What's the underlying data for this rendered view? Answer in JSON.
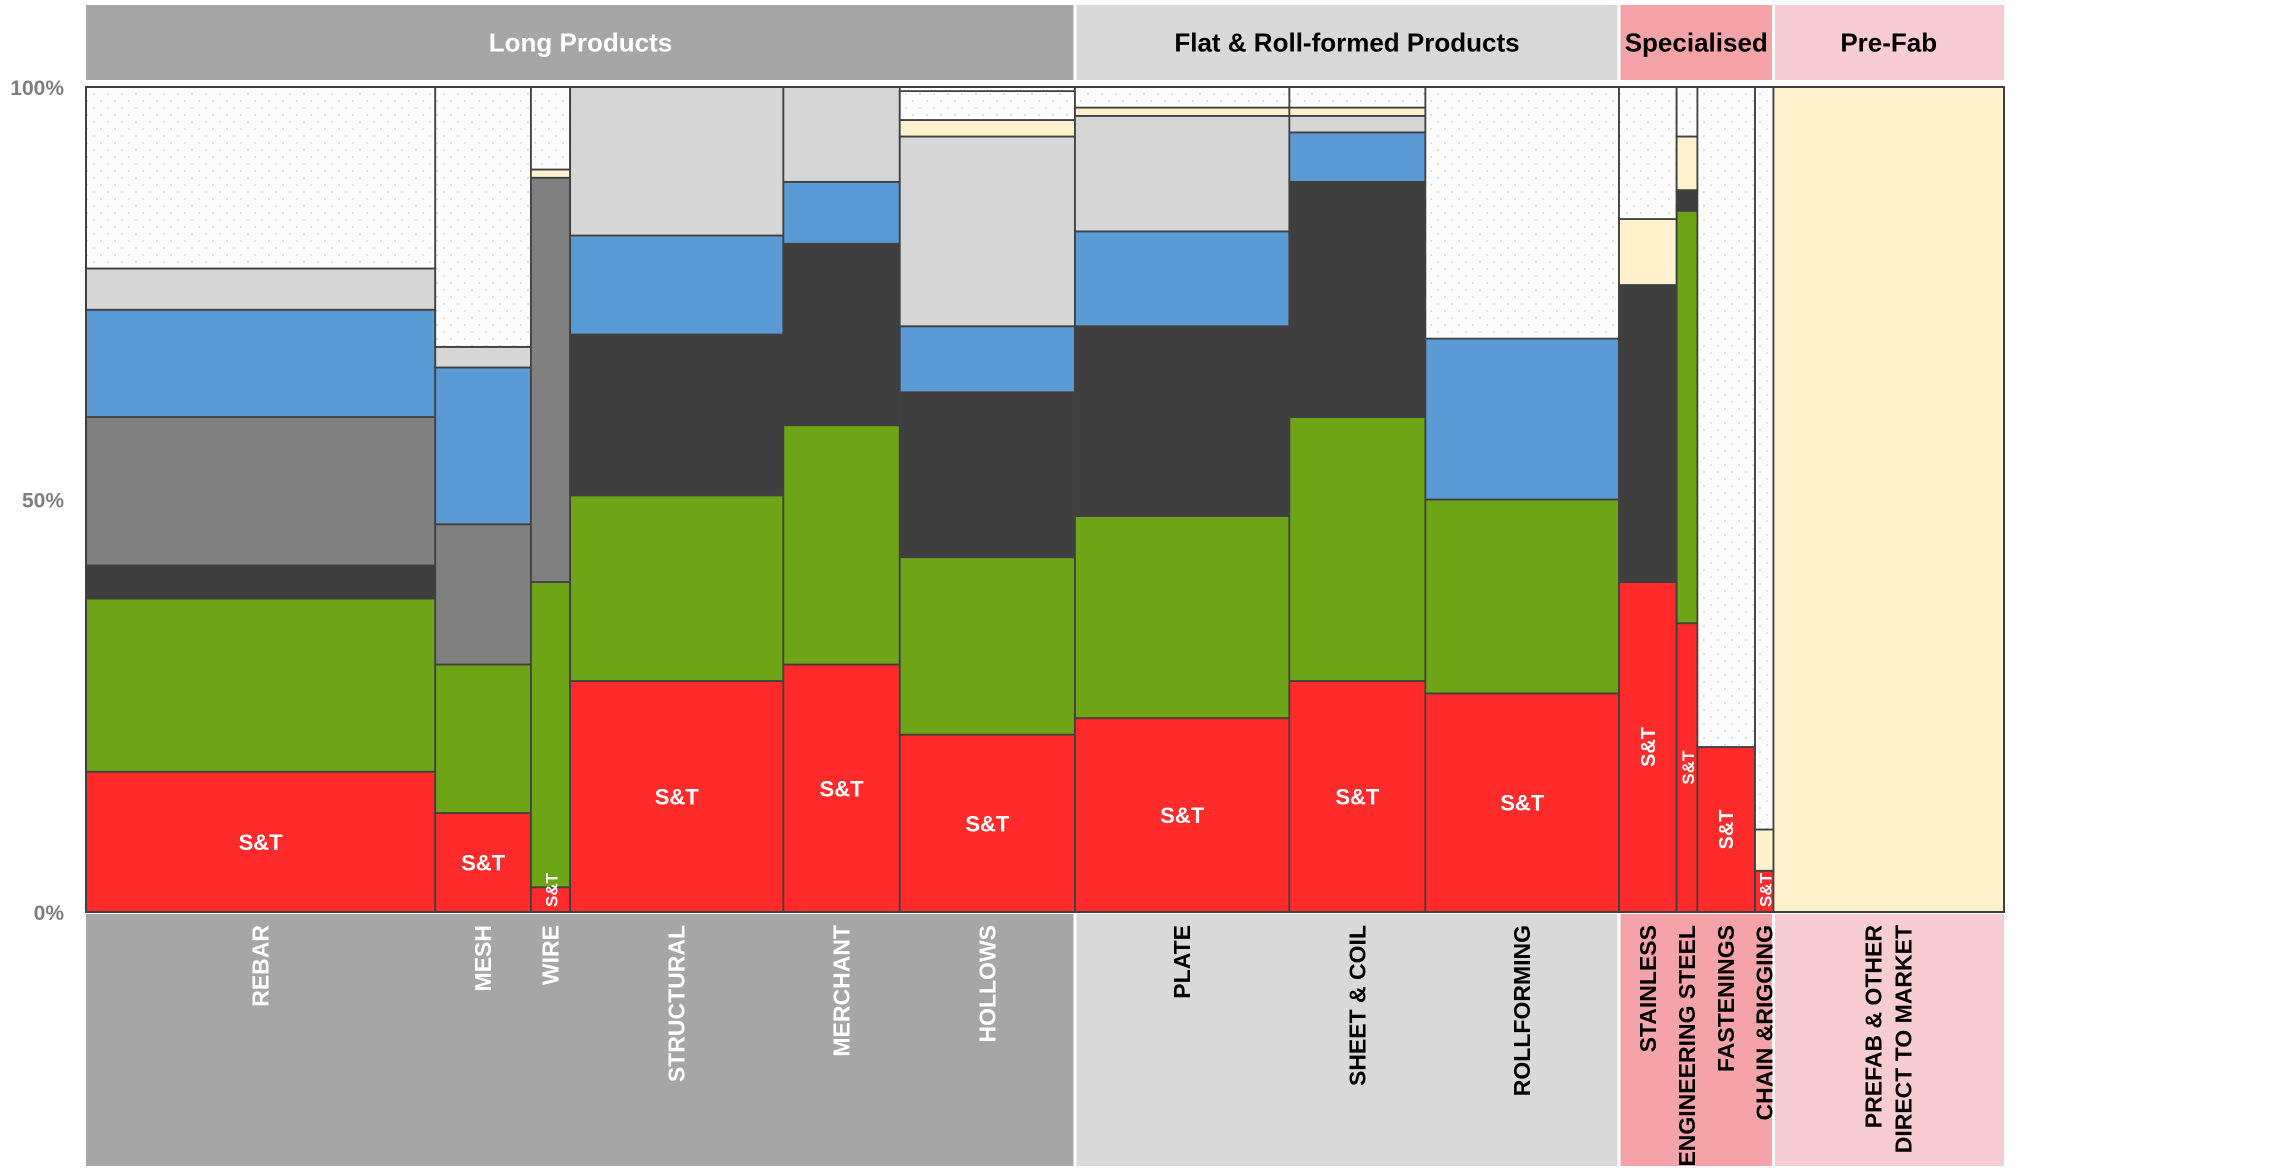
{
  "chart_data": {
    "type": "bar",
    "subtype": "marimekko",
    "ylim": [
      0,
      100
    ],
    "y_ticks": [
      "0%",
      "50%",
      "100%"
    ],
    "grid": false,
    "legend": "none",
    "segment_label": "S&T",
    "segment_colors": [
      "#ff2b2b",
      "#6ea516",
      "#3f3f3f",
      "#808080",
      "#5b9bd5",
      "#d6d6d6",
      "#fff2cc",
      "#fcfcfc"
    ],
    "categories": [
      "REBAR",
      "MESH",
      "WIRE",
      "STRUCTURAL",
      "MERCHANT",
      "HOLLOWS",
      "PLATE",
      "SHEET & COIL",
      "ROLLFORMING",
      "STAINLESS",
      "ENGINEERING STEEL",
      "FASTENINGS",
      "CHAIN &RIGGING",
      "PREFAB & OTHER\nDIRECT TO MARKET"
    ],
    "widths": [
      15.15,
      4.15,
      1.7,
      9.25,
      5.05,
      7.6,
      9.3,
      5.9,
      8.4,
      2.5,
      0.9,
      2.5,
      0.8,
      10.0
    ],
    "stacks": [
      [
        17,
        21,
        4,
        18,
        13,
        5,
        0,
        22
      ],
      [
        12,
        18,
        0,
        17,
        19,
        2.5,
        0,
        31.5
      ],
      [
        3,
        37,
        0,
        49,
        0,
        0,
        1,
        10
      ],
      [
        28,
        22.5,
        19.5,
        0,
        12,
        18,
        0,
        0
      ],
      [
        30,
        29,
        22,
        0,
        7.5,
        11.5,
        0,
        0
      ],
      [
        21.5,
        21.5,
        20,
        0,
        8,
        23,
        2,
        3.5
      ],
      [
        23.5,
        24.5,
        23,
        0,
        11.5,
        14,
        1,
        2.5
      ],
      [
        28,
        32,
        28.5,
        0,
        6,
        2,
        1,
        2.5
      ],
      [
        26.5,
        23.5,
        0,
        0,
        19.5,
        0,
        0,
        30.5
      ],
      [
        40,
        0,
        36,
        0,
        0,
        0,
        8,
        16
      ],
      [
        35,
        50,
        2.5,
        0,
        0,
        0,
        6.5,
        6
      ],
      [
        20,
        0,
        0,
        0,
        0,
        0,
        0,
        80
      ],
      [
        5,
        0,
        0,
        0,
        0,
        0,
        5,
        90
      ],
      [
        0,
        0,
        0,
        0,
        0,
        0,
        100,
        0
      ]
    ],
    "groups": [
      {
        "name": "Long Products",
        "span": [
          0,
          5
        ],
        "header_color": "#a6a6a6",
        "text_color": "#ffffff"
      },
      {
        "name": "Flat & Roll-formed Products",
        "span": [
          6,
          8
        ],
        "header_color": "#d9d9d9",
        "text_color": "#000000"
      },
      {
        "name": "Specialised",
        "span": [
          9,
          12
        ],
        "header_color": "#f4a3a8",
        "text_color": "#000000"
      },
      {
        "name": "Pre-Fab",
        "span": [
          13,
          13
        ],
        "header_color": "#f8cdd1",
        "text_color": "#000000"
      }
    ]
  }
}
